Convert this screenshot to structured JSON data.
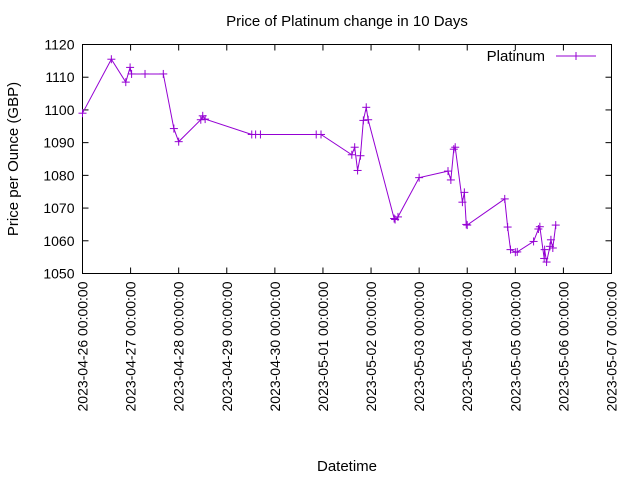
{
  "chart_data": {
    "type": "line",
    "title": "Price of Platinum change in 10 Days",
    "xlabel": "Datetime",
    "ylabel": "Price per Ounce (GBP)",
    "x_is_datetime": true,
    "xlim": [
      "2023-04-26 00:00:00",
      "2023-05-07 00:00:00"
    ],
    "ylim": [
      1050,
      1120
    ],
    "x_ticks": [
      "2023-04-26 00:00:00",
      "2023-04-27 00:00:00",
      "2023-04-28 00:00:00",
      "2023-04-29 00:00:00",
      "2023-04-30 00:00:00",
      "2023-05-01 00:00:00",
      "2023-05-02 00:00:00",
      "2023-05-03 00:00:00",
      "2023-05-04 00:00:00",
      "2023-05-05 00:00:00",
      "2023-05-06 00:00:00",
      "2023-05-07 00:00:00"
    ],
    "y_ticks": [
      1050,
      1060,
      1070,
      1080,
      1090,
      1100,
      1110,
      1120
    ],
    "grid": false,
    "legend_position": "top-right",
    "series": [
      {
        "name": "Platinum",
        "color": "#9400d3",
        "marker": "plus",
        "points": [
          [
            "2023-04-26 00:00:00",
            1099
          ],
          [
            "2023-04-26 14:24:00",
            1115.5
          ],
          [
            "2023-04-26 21:36:00",
            1108.5
          ],
          [
            "2023-04-26 23:45:00",
            1113
          ],
          [
            "2023-04-27 00:30:00",
            1111
          ],
          [
            "2023-04-27 07:12:00",
            1111
          ],
          [
            "2023-04-27 16:19:00",
            1111
          ],
          [
            "2023-04-27 21:36:00",
            1094.3
          ],
          [
            "2023-04-28 00:00:00",
            1090.3
          ],
          [
            "2023-04-28 11:02:00",
            1097
          ],
          [
            "2023-04-28 12:00:00",
            1098.2
          ],
          [
            "2023-04-28 13:12:00",
            1097.2
          ],
          [
            "2023-04-29 12:28:00",
            1092.5
          ],
          [
            "2023-04-29 14:24:00",
            1092.5
          ],
          [
            "2023-04-29 16:48:00",
            1092.5
          ],
          [
            "2023-04-30 20:38:00",
            1092.5
          ],
          [
            "2023-04-30 23:02:00",
            1092.5
          ],
          [
            "2023-05-01 14:24:00",
            1086.3
          ],
          [
            "2023-05-01 15:50:00",
            1088.6
          ],
          [
            "2023-05-01 17:17:00",
            1081.5
          ],
          [
            "2023-05-01 18:43:00",
            1086
          ],
          [
            "2023-05-01 20:10:00",
            1096.8
          ],
          [
            "2023-05-01 21:36:00",
            1100.8
          ],
          [
            "2023-05-01 22:34:00",
            1097
          ],
          [
            "2023-05-02 11:31:00",
            1066.8
          ],
          [
            "2023-05-02 12:00:00",
            1066.5
          ],
          [
            "2023-05-02 13:26:00",
            1067.3
          ],
          [
            "2023-05-03 00:00:00",
            1079.3
          ],
          [
            "2023-05-03 14:24:00",
            1081.3
          ],
          [
            "2023-05-03 15:50:00",
            1078.6
          ],
          [
            "2023-05-03 17:17:00",
            1088
          ],
          [
            "2023-05-03 18:00:00",
            1088.6
          ],
          [
            "2023-05-03 21:36:00",
            1071.8
          ],
          [
            "2023-05-03 22:34:00",
            1074.8
          ],
          [
            "2023-05-03 23:31:00",
            1065
          ],
          [
            "2023-05-04 00:00:00",
            1064.8
          ],
          [
            "2023-05-04 18:43:00",
            1072.8
          ],
          [
            "2023-05-04 20:10:00",
            1064.2
          ],
          [
            "2023-05-04 21:36:00",
            1057.3
          ],
          [
            "2023-05-05 00:00:00",
            1056.5
          ],
          [
            "2023-05-05 00:58:00",
            1056.6
          ],
          [
            "2023-05-05 09:07:00",
            1059.8
          ],
          [
            "2023-05-05 11:31:00",
            1063.6
          ],
          [
            "2023-05-05 12:14:00",
            1064.3
          ],
          [
            "2023-05-05 14:24:00",
            1054.6
          ],
          [
            "2023-05-05 14:38:00",
            1057.3
          ],
          [
            "2023-05-05 15:36:00",
            1053.5
          ],
          [
            "2023-05-05 17:17:00",
            1058.3
          ],
          [
            "2023-05-05 17:46:00",
            1060.3
          ],
          [
            "2023-05-05 18:43:00",
            1057.8
          ],
          [
            "2023-05-05 20:10:00",
            1064.8
          ]
        ]
      }
    ]
  }
}
